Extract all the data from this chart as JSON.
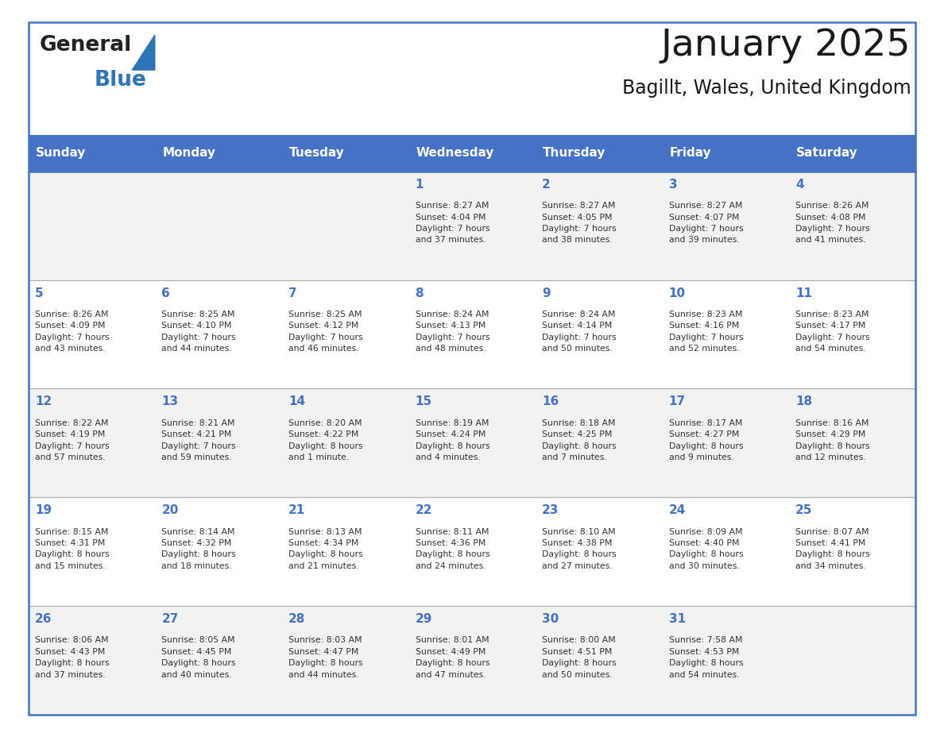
{
  "title": "January 2025",
  "subtitle": "Bagillt, Wales, United Kingdom",
  "header_bg_color": "#4472C4",
  "header_text_color": "#FFFFFF",
  "header_days": [
    "Sunday",
    "Monday",
    "Tuesday",
    "Wednesday",
    "Thursday",
    "Friday",
    "Saturday"
  ],
  "odd_row_bg": "#F2F2F2",
  "even_row_bg": "#FFFFFF",
  "border_color": "#4472C4",
  "text_color": "#333333",
  "logo_general_color": "#222222",
  "logo_blue_color": "#2E75B6",
  "calendar": [
    [
      {
        "day": "",
        "info": ""
      },
      {
        "day": "",
        "info": ""
      },
      {
        "day": "",
        "info": ""
      },
      {
        "day": "1",
        "info": "Sunrise: 8:27 AM\nSunset: 4:04 PM\nDaylight: 7 hours\nand 37 minutes."
      },
      {
        "day": "2",
        "info": "Sunrise: 8:27 AM\nSunset: 4:05 PM\nDaylight: 7 hours\nand 38 minutes."
      },
      {
        "day": "3",
        "info": "Sunrise: 8:27 AM\nSunset: 4:07 PM\nDaylight: 7 hours\nand 39 minutes."
      },
      {
        "day": "4",
        "info": "Sunrise: 8:26 AM\nSunset: 4:08 PM\nDaylight: 7 hours\nand 41 minutes."
      }
    ],
    [
      {
        "day": "5",
        "info": "Sunrise: 8:26 AM\nSunset: 4:09 PM\nDaylight: 7 hours\nand 43 minutes."
      },
      {
        "day": "6",
        "info": "Sunrise: 8:25 AM\nSunset: 4:10 PM\nDaylight: 7 hours\nand 44 minutes."
      },
      {
        "day": "7",
        "info": "Sunrise: 8:25 AM\nSunset: 4:12 PM\nDaylight: 7 hours\nand 46 minutes."
      },
      {
        "day": "8",
        "info": "Sunrise: 8:24 AM\nSunset: 4:13 PM\nDaylight: 7 hours\nand 48 minutes."
      },
      {
        "day": "9",
        "info": "Sunrise: 8:24 AM\nSunset: 4:14 PM\nDaylight: 7 hours\nand 50 minutes."
      },
      {
        "day": "10",
        "info": "Sunrise: 8:23 AM\nSunset: 4:16 PM\nDaylight: 7 hours\nand 52 minutes."
      },
      {
        "day": "11",
        "info": "Sunrise: 8:23 AM\nSunset: 4:17 PM\nDaylight: 7 hours\nand 54 minutes."
      }
    ],
    [
      {
        "day": "12",
        "info": "Sunrise: 8:22 AM\nSunset: 4:19 PM\nDaylight: 7 hours\nand 57 minutes."
      },
      {
        "day": "13",
        "info": "Sunrise: 8:21 AM\nSunset: 4:21 PM\nDaylight: 7 hours\nand 59 minutes."
      },
      {
        "day": "14",
        "info": "Sunrise: 8:20 AM\nSunset: 4:22 PM\nDaylight: 8 hours\nand 1 minute."
      },
      {
        "day": "15",
        "info": "Sunrise: 8:19 AM\nSunset: 4:24 PM\nDaylight: 8 hours\nand 4 minutes."
      },
      {
        "day": "16",
        "info": "Sunrise: 8:18 AM\nSunset: 4:25 PM\nDaylight: 8 hours\nand 7 minutes."
      },
      {
        "day": "17",
        "info": "Sunrise: 8:17 AM\nSunset: 4:27 PM\nDaylight: 8 hours\nand 9 minutes."
      },
      {
        "day": "18",
        "info": "Sunrise: 8:16 AM\nSunset: 4:29 PM\nDaylight: 8 hours\nand 12 minutes."
      }
    ],
    [
      {
        "day": "19",
        "info": "Sunrise: 8:15 AM\nSunset: 4:31 PM\nDaylight: 8 hours\nand 15 minutes."
      },
      {
        "day": "20",
        "info": "Sunrise: 8:14 AM\nSunset: 4:32 PM\nDaylight: 8 hours\nand 18 minutes."
      },
      {
        "day": "21",
        "info": "Sunrise: 8:13 AM\nSunset: 4:34 PM\nDaylight: 8 hours\nand 21 minutes."
      },
      {
        "day": "22",
        "info": "Sunrise: 8:11 AM\nSunset: 4:36 PM\nDaylight: 8 hours\nand 24 minutes."
      },
      {
        "day": "23",
        "info": "Sunrise: 8:10 AM\nSunset: 4:38 PM\nDaylight: 8 hours\nand 27 minutes."
      },
      {
        "day": "24",
        "info": "Sunrise: 8:09 AM\nSunset: 4:40 PM\nDaylight: 8 hours\nand 30 minutes."
      },
      {
        "day": "25",
        "info": "Sunrise: 8:07 AM\nSunset: 4:41 PM\nDaylight: 8 hours\nand 34 minutes."
      }
    ],
    [
      {
        "day": "26",
        "info": "Sunrise: 8:06 AM\nSunset: 4:43 PM\nDaylight: 8 hours\nand 37 minutes."
      },
      {
        "day": "27",
        "info": "Sunrise: 8:05 AM\nSunset: 4:45 PM\nDaylight: 8 hours\nand 40 minutes."
      },
      {
        "day": "28",
        "info": "Sunrise: 8:03 AM\nSunset: 4:47 PM\nDaylight: 8 hours\nand 44 minutes."
      },
      {
        "day": "29",
        "info": "Sunrise: 8:01 AM\nSunset: 4:49 PM\nDaylight: 8 hours\nand 47 minutes."
      },
      {
        "day": "30",
        "info": "Sunrise: 8:00 AM\nSunset: 4:51 PM\nDaylight: 8 hours\nand 50 minutes."
      },
      {
        "day": "31",
        "info": "Sunrise: 7:58 AM\nSunset: 4:53 PM\nDaylight: 8 hours\nand 54 minutes."
      },
      {
        "day": "",
        "info": ""
      }
    ]
  ]
}
